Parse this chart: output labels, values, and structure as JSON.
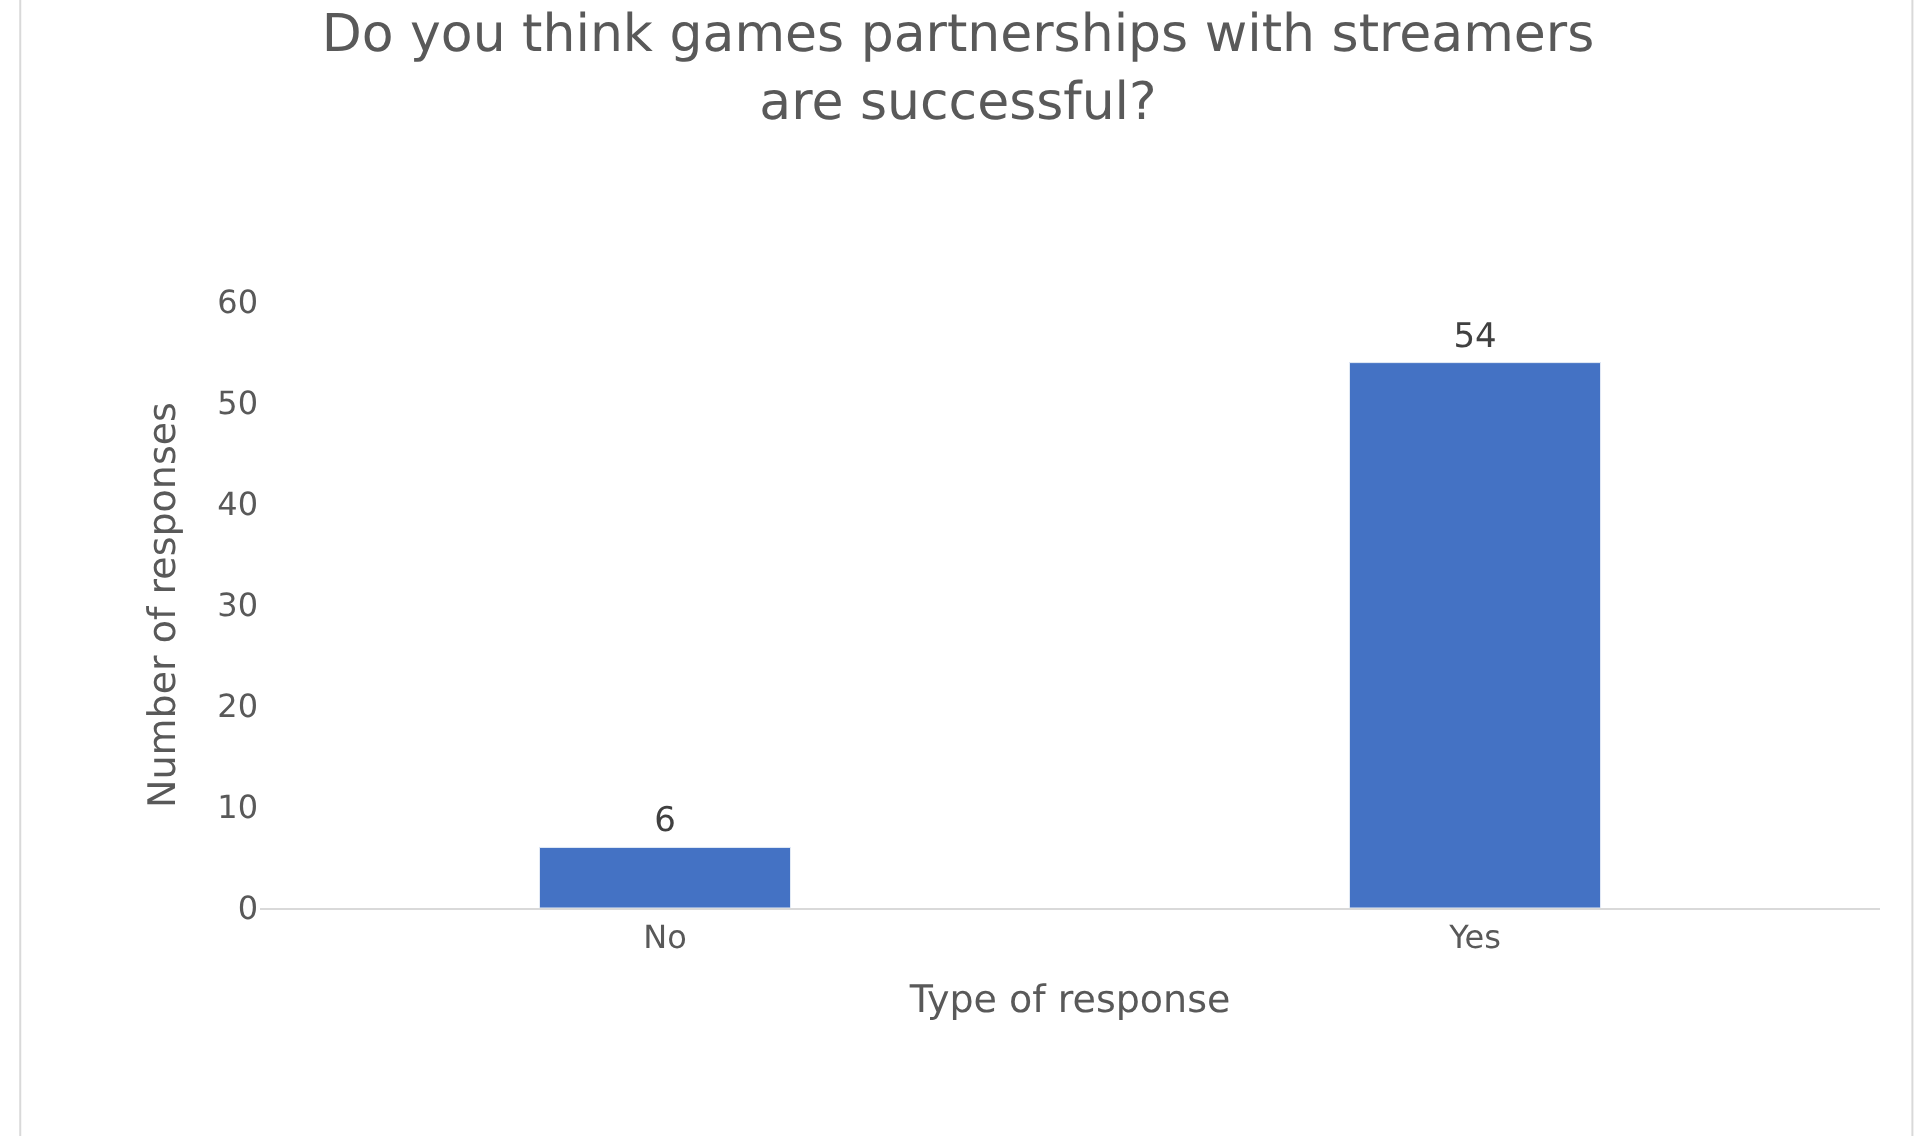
{
  "chart_data": {
    "type": "bar",
    "title": "Do you think games partnerships with streamers are successful?",
    "xlabel": "Type of response",
    "ylabel": "Number of responses",
    "categories": [
      "No",
      "Yes"
    ],
    "values": [
      6,
      54
    ],
    "color": "#4472c4",
    "ylim": [
      0,
      60
    ],
    "yticks": [
      0,
      10,
      20,
      30,
      40,
      50,
      60
    ],
    "grid": false,
    "data_labels": true
  }
}
